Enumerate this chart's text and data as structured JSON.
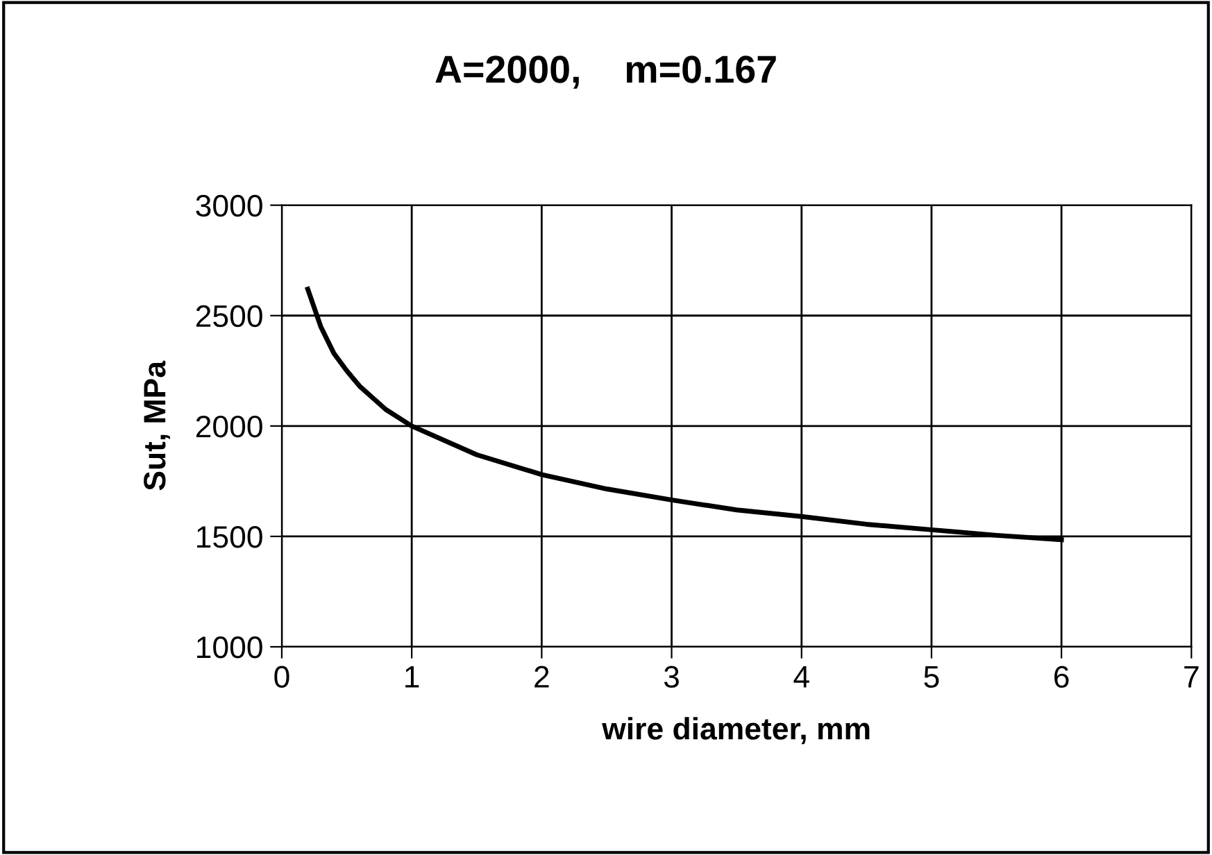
{
  "chart_data": {
    "type": "line",
    "title": "A=2000,    m=0.167",
    "xlabel": "wire diameter, mm",
    "ylabel": "Sut, MPa",
    "x": [
      0.2,
      0.3,
      0.4,
      0.5,
      0.6,
      0.8,
      1,
      1.5,
      2,
      2.5,
      3,
      3.5,
      4,
      4.5,
      5,
      5.5,
      6
    ],
    "series": [
      {
        "color": "#000000",
        "values": [
          2620,
          2450,
          2330,
          2250,
          2180,
          2075,
          2000,
          1870,
          1780,
          1715,
          1665,
          1620,
          1590,
          1555,
          1530,
          1505,
          1485
        ]
      }
    ],
    "xlim": [
      0,
      7
    ],
    "xticks": [
      0,
      1,
      2,
      3,
      4,
      5,
      6,
      7
    ],
    "ylim": [
      1000,
      3000
    ],
    "yticks": [
      1000,
      1500,
      2000,
      2500,
      3000
    ],
    "grid": true,
    "legend": false,
    "marker": "none",
    "line_style": "solid"
  }
}
